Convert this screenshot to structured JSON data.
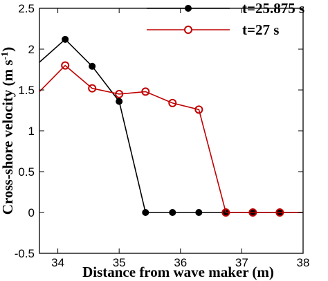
{
  "chart_data": {
    "type": "line",
    "xlabel": "Distance from wave maker (m)",
    "ylabel": "Cross-shore velocity (m s",
    "ylabel_sup": "-1",
    "ylabel_close": ")",
    "xlim": [
      33.7,
      38
    ],
    "ylim": [
      -0.5,
      2.5
    ],
    "xticks": [
      34,
      35,
      36,
      37,
      38
    ],
    "yticks": [
      -0.5,
      0,
      0.5,
      1,
      1.5,
      2,
      2.5
    ],
    "xtick_labels": [
      "34",
      "35",
      "36",
      "37",
      "38"
    ],
    "ytick_labels": [
      "-0.5",
      "0",
      "0.5",
      "1",
      "1.5",
      "2",
      "2.5"
    ],
    "legend_position": "top-right",
    "grid": false,
    "series": [
      {
        "name": "t=25.875 s",
        "color": "#000000",
        "marker": "filled-circle",
        "x": [
          33.7,
          34.12,
          34.56,
          35.0,
          35.43,
          35.87,
          36.3,
          36.74,
          37.18,
          37.62,
          38.0
        ],
        "y": [
          1.84,
          2.12,
          1.79,
          1.36,
          0.0,
          0.0,
          0.0,
          0.0,
          0.0,
          0.0,
          0.0
        ],
        "marker_x": [
          34.12,
          34.56,
          35.0,
          35.43,
          35.87,
          36.3,
          36.74,
          37.18,
          37.62
        ],
        "marker_y": [
          2.12,
          1.79,
          1.36,
          0.0,
          0.0,
          0.0,
          0.0,
          0.0,
          0.0
        ]
      },
      {
        "name": "t=27 s",
        "color": "#c00000",
        "marker": "open-circle",
        "x": [
          33.7,
          34.12,
          34.56,
          35.0,
          35.43,
          35.87,
          36.3,
          36.74,
          37.18,
          37.62,
          38.0
        ],
        "y": [
          1.48,
          1.8,
          1.52,
          1.45,
          1.48,
          1.34,
          1.26,
          0.0,
          0.0,
          0.0,
          0.0
        ],
        "marker_x": [
          34.12,
          34.56,
          35.0,
          35.43,
          35.87,
          36.3,
          36.74,
          37.18,
          37.62
        ],
        "marker_y": [
          1.8,
          1.52,
          1.45,
          1.48,
          1.34,
          1.26,
          0.0,
          0.0,
          0.0
        ]
      }
    ]
  }
}
